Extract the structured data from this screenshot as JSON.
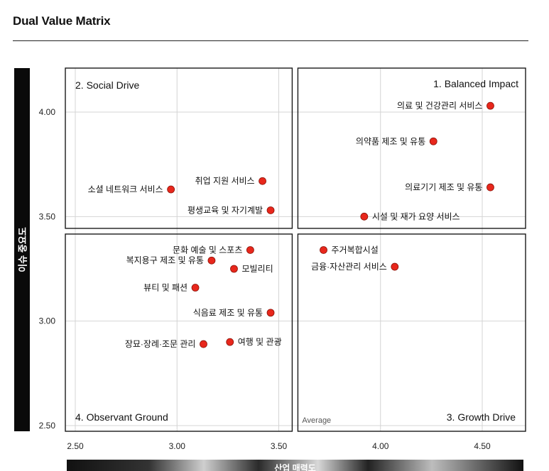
{
  "header": {
    "title": "Dual Value Matrix"
  },
  "chart_data": {
    "type": "scatter",
    "title": "Dual Value Matrix",
    "xlabel": "산업 매력도",
    "ylabel": "이슈 중요도",
    "xlim": [
      2.5,
      4.6
    ],
    "ylim": [
      2.5,
      4.2
    ],
    "x_ticks": [
      "2.50",
      "3.00",
      "3.50",
      "4.00",
      "4.50"
    ],
    "y_ticks": [
      "2.50",
      "3.00",
      "3.50",
      "4.00"
    ],
    "x_split": 3.58,
    "y_split": 3.43,
    "quadrants": {
      "q1": "1. Balanced Impact",
      "q2": "2. Social Drive",
      "q3": "3. Growth Drive",
      "q4": "4. Observant Ground"
    },
    "average_label": "Average",
    "point_color": "#e8271c",
    "points": [
      {
        "label": "의료 및 건강관리 서비스",
        "x": 4.54,
        "y": 4.03,
        "side": "left"
      },
      {
        "label": "의약품 제조 및 유통",
        "x": 4.26,
        "y": 3.86,
        "side": "left"
      },
      {
        "label": "의료기기 제조 및 유통",
        "x": 4.54,
        "y": 3.64,
        "side": "left"
      },
      {
        "label": "시설 및 재가 요양 서비스",
        "x": 3.92,
        "y": 3.5,
        "side": "right"
      },
      {
        "label": "취업 지원 서비스",
        "x": 3.42,
        "y": 3.67,
        "side": "left"
      },
      {
        "label": "소셜 네트워크 서비스",
        "x": 2.97,
        "y": 3.63,
        "side": "left"
      },
      {
        "label": "평생교육 및 자기계발",
        "x": 3.46,
        "y": 3.53,
        "side": "left"
      },
      {
        "label": "문화 예술 및 스포츠",
        "x": 3.36,
        "y": 3.34,
        "side": "left"
      },
      {
        "label": "복지용구 제조 및 유통",
        "x": 3.17,
        "y": 3.29,
        "side": "left"
      },
      {
        "label": "모빌리티",
        "x": 3.28,
        "y": 3.25,
        "side": "right"
      },
      {
        "label": "뷰티 및 패션",
        "x": 3.09,
        "y": 3.16,
        "side": "left"
      },
      {
        "label": "식음료 제조 및 유통",
        "x": 3.46,
        "y": 3.04,
        "side": "left"
      },
      {
        "label": "장묘·장례·조문 관리",
        "x": 3.13,
        "y": 2.89,
        "side": "left"
      },
      {
        "label": "여행 및 관광",
        "x": 3.26,
        "y": 2.9,
        "side": "right"
      },
      {
        "label": "주거복합시설",
        "x": 3.72,
        "y": 3.34,
        "side": "right"
      },
      {
        "label": "금융·자산관리 서비스",
        "x": 4.07,
        "y": 3.26,
        "side": "left"
      }
    ]
  }
}
